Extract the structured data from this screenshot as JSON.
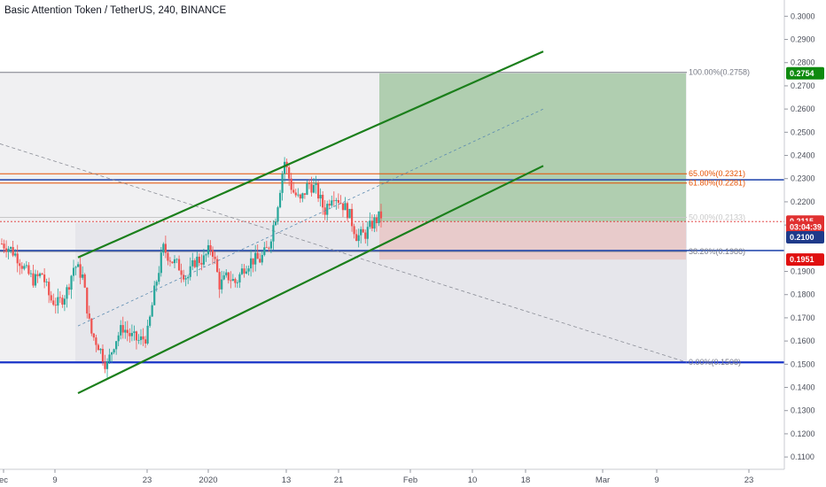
{
  "header": {
    "title": "Basic Attention Token / TetherUS, 240, BINANCE"
  },
  "chart_data": {
    "type": "candlestick",
    "title": "Basic Attention Token / TetherUS, 240, BINANCE",
    "ylim": [
      0.1047,
      0.307
    ],
    "y_ticks": [
      "0.3000",
      "0.2900",
      "0.2800",
      "0.2700",
      "0.2600",
      "0.2500",
      "0.2400",
      "0.2300",
      "0.2200",
      "0.2100",
      "0.1900",
      "0.1800",
      "0.1700",
      "0.1600",
      "0.1500",
      "0.1400",
      "0.1300",
      "0.1200",
      "0.1100"
    ],
    "x_ticks": [
      "ec",
      "9",
      "23",
      "2020",
      "13",
      "21",
      "Feb",
      "10",
      "18",
      "Mar",
      "9",
      "23"
    ],
    "price_path": [
      [
        0.202,
        0.2
      ],
      [
        0.196,
        0.19
      ],
      [
        0.186,
        0.189
      ],
      [
        0.178,
        0.176
      ],
      [
        0.181,
        0.193
      ],
      [
        0.188,
        0.164
      ],
      [
        0.158,
        0.149
      ],
      [
        0.16,
        0.166
      ],
      [
        0.162,
        0.16
      ],
      [
        0.162,
        0.183
      ],
      [
        0.2,
        0.195
      ],
      [
        0.192,
        0.187
      ],
      [
        0.195,
        0.195
      ],
      [
        0.201,
        0.184
      ],
      [
        0.188,
        0.185
      ],
      [
        0.192,
        0.195
      ],
      [
        0.195,
        0.2
      ],
      [
        0.215,
        0.238
      ],
      [
        0.225,
        0.22
      ],
      [
        0.228,
        0.225
      ],
      [
        0.216,
        0.224
      ],
      [
        0.22,
        0.215
      ],
      [
        0.205,
        0.206
      ],
      [
        0.211,
        0.214
      ]
    ],
    "channel": {
      "color": "#1b7f1b",
      "upper": [
        [
          0.196
        ],
        [
          0.2848
        ]
      ],
      "lower": [
        [
          0.1375
        ],
        [
          0.2355
        ]
      ],
      "mid": [
        [
          0.1665
        ],
        [
          0.26
        ]
      ]
    },
    "fib_levels": [
      {
        "label": "100.00%(0.2758)",
        "value": 0.2758,
        "color": "#787b86"
      },
      {
        "label": "65.00%(0.2321)",
        "value": 0.2321,
        "color": "#e65100"
      },
      {
        "label": "61.80%(0.2281)",
        "value": 0.2281,
        "color": "#e65100"
      },
      {
        "label": "50.00%(0.2133)",
        "value": 0.2133,
        "color": "#c8c8c8"
      },
      {
        "label": "38.20%(0.1986)",
        "value": 0.1986,
        "color": "#787b86"
      },
      {
        "label": "0.00%(0.1508)",
        "value": 0.1508,
        "color": "#787b86"
      }
    ],
    "horizontal_lines": [
      {
        "value": 0.1508,
        "color": "#1a35c8"
      },
      {
        "value": 0.199,
        "color": "#2b4fb0"
      },
      {
        "value": 0.2295,
        "color": "#2b4fb0"
      }
    ],
    "position": {
      "entry": 0.2115,
      "target": 0.2754,
      "stop": 0.1951
    },
    "badges": [
      {
        "label": "0.2754",
        "value": 0.2754,
        "color": "#0f8a0f"
      },
      {
        "label": "0.2115",
        "value": 0.2115,
        "color": "#e03030"
      },
      {
        "label": "03:04:39",
        "value": 0.209,
        "color": "#e03030"
      },
      {
        "label": "0.2100",
        "value": 0.2047,
        "color": "#1e3a8a"
      },
      {
        "label": "0.1951",
        "value": 0.1951,
        "color": "#e01010"
      }
    ],
    "colors": {
      "up": "#26a69a",
      "down": "#ef5350",
      "target_zone": "#a5c8a5",
      "stop_zone": "#e8c6c6"
    },
    "grid": false
  }
}
